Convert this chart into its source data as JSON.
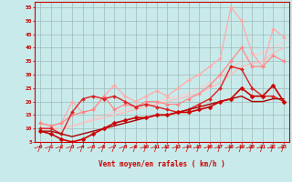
{
  "xlabel": "Vent moyen/en rafales ( km/h )",
  "xlim": [
    -0.5,
    23.5
  ],
  "ylim": [
    5,
    57
  ],
  "yticks": [
    5,
    10,
    15,
    20,
    25,
    30,
    35,
    40,
    45,
    50,
    55
  ],
  "xticks": [
    0,
    1,
    2,
    3,
    4,
    5,
    6,
    7,
    8,
    9,
    10,
    11,
    12,
    13,
    14,
    15,
    16,
    17,
    18,
    19,
    20,
    21,
    22,
    23
  ],
  "bg_color": "#c8eaea",
  "grid_color": "#a0b8b8",
  "lines": [
    {
      "x": [
        0,
        1,
        2,
        3,
        4,
        5,
        6,
        7,
        8,
        9,
        10,
        11,
        12,
        13,
        14,
        15,
        16,
        17,
        18,
        19,
        20,
        21,
        22,
        23
      ],
      "y": [
        10,
        10,
        10,
        11,
        12,
        14,
        15,
        16,
        17,
        18,
        19,
        20,
        21,
        22,
        23,
        25,
        27,
        29,
        32,
        35,
        37,
        38,
        40,
        42
      ],
      "color": "#ffcccc",
      "lw": 0.9,
      "marker": null,
      "ms": 0,
      "zorder": 1
    },
    {
      "x": [
        0,
        1,
        2,
        3,
        4,
        5,
        6,
        7,
        8,
        9,
        10,
        11,
        12,
        13,
        14,
        15,
        16,
        17,
        18,
        19,
        20,
        21,
        22,
        23
      ],
      "y": [
        10,
        10,
        10,
        11,
        12,
        13,
        14,
        15,
        16,
        17,
        18,
        19,
        20,
        21,
        22,
        23,
        25,
        27,
        30,
        33,
        34,
        35,
        38,
        40
      ],
      "color": "#ffbbbb",
      "lw": 0.9,
      "marker": null,
      "ms": 0,
      "zorder": 2
    },
    {
      "x": [
        0,
        1,
        2,
        3,
        4,
        5,
        6,
        7,
        8,
        9,
        10,
        11,
        12,
        13,
        14,
        15,
        16,
        17,
        18,
        19,
        20,
        21,
        22,
        23
      ],
      "y": [
        12,
        11,
        12,
        20,
        16,
        17,
        22,
        26,
        22,
        20,
        22,
        24,
        22,
        25,
        28,
        30,
        33,
        36,
        55,
        50,
        38,
        33,
        47,
        44
      ],
      "color": "#ffaaaa",
      "lw": 0.9,
      "marker": "D",
      "ms": 2.0,
      "zorder": 3
    },
    {
      "x": [
        0,
        1,
        2,
        3,
        4,
        5,
        6,
        7,
        8,
        9,
        10,
        11,
        12,
        13,
        14,
        15,
        16,
        17,
        18,
        19,
        20,
        21,
        22,
        23
      ],
      "y": [
        12,
        11,
        12,
        15,
        16,
        17,
        22,
        17,
        19,
        18,
        20,
        20,
        19,
        19,
        21,
        23,
        26,
        30,
        35,
        40,
        33,
        33,
        37,
        35
      ],
      "color": "#ff8888",
      "lw": 0.9,
      "marker": "D",
      "ms": 2.0,
      "zorder": 4
    },
    {
      "x": [
        0,
        1,
        2,
        3,
        4,
        5,
        6,
        7,
        8,
        9,
        10,
        11,
        12,
        13,
        14,
        15,
        16,
        17,
        18,
        19,
        20,
        21,
        22,
        23
      ],
      "y": [
        10,
        10,
        8,
        16,
        21,
        22,
        21,
        22,
        20,
        18,
        19,
        18,
        17,
        16,
        17,
        19,
        21,
        25,
        33,
        32,
        25,
        22,
        22,
        20
      ],
      "color": "#dd2222",
      "lw": 1.0,
      "marker": "D",
      "ms": 2.0,
      "zorder": 5
    },
    {
      "x": [
        0,
        1,
        2,
        3,
        4,
        5,
        6,
        7,
        8,
        9,
        10,
        11,
        12,
        13,
        14,
        15,
        16,
        17,
        18,
        19,
        20,
        21,
        22,
        23
      ],
      "y": [
        9,
        8,
        6,
        5,
        6,
        8,
        10,
        12,
        13,
        14,
        14,
        15,
        15,
        16,
        16,
        17,
        18,
        20,
        21,
        25,
        22,
        22,
        26,
        20
      ],
      "color": "#cc0000",
      "lw": 1.2,
      "marker": "D",
      "ms": 2.5,
      "zorder": 7
    },
    {
      "x": [
        0,
        1,
        2,
        3,
        4,
        5,
        6,
        7,
        8,
        9,
        10,
        11,
        12,
        13,
        14,
        15,
        16,
        17,
        18,
        19,
        20,
        21,
        22,
        23
      ],
      "y": [
        9,
        9,
        8,
        7,
        8,
        9,
        10,
        11,
        12,
        13,
        14,
        15,
        15,
        16,
        17,
        18,
        19,
        20,
        21,
        22,
        20,
        20,
        21,
        21
      ],
      "color": "#aa0000",
      "lw": 1.0,
      "marker": null,
      "ms": 0,
      "zorder": 6
    }
  ]
}
